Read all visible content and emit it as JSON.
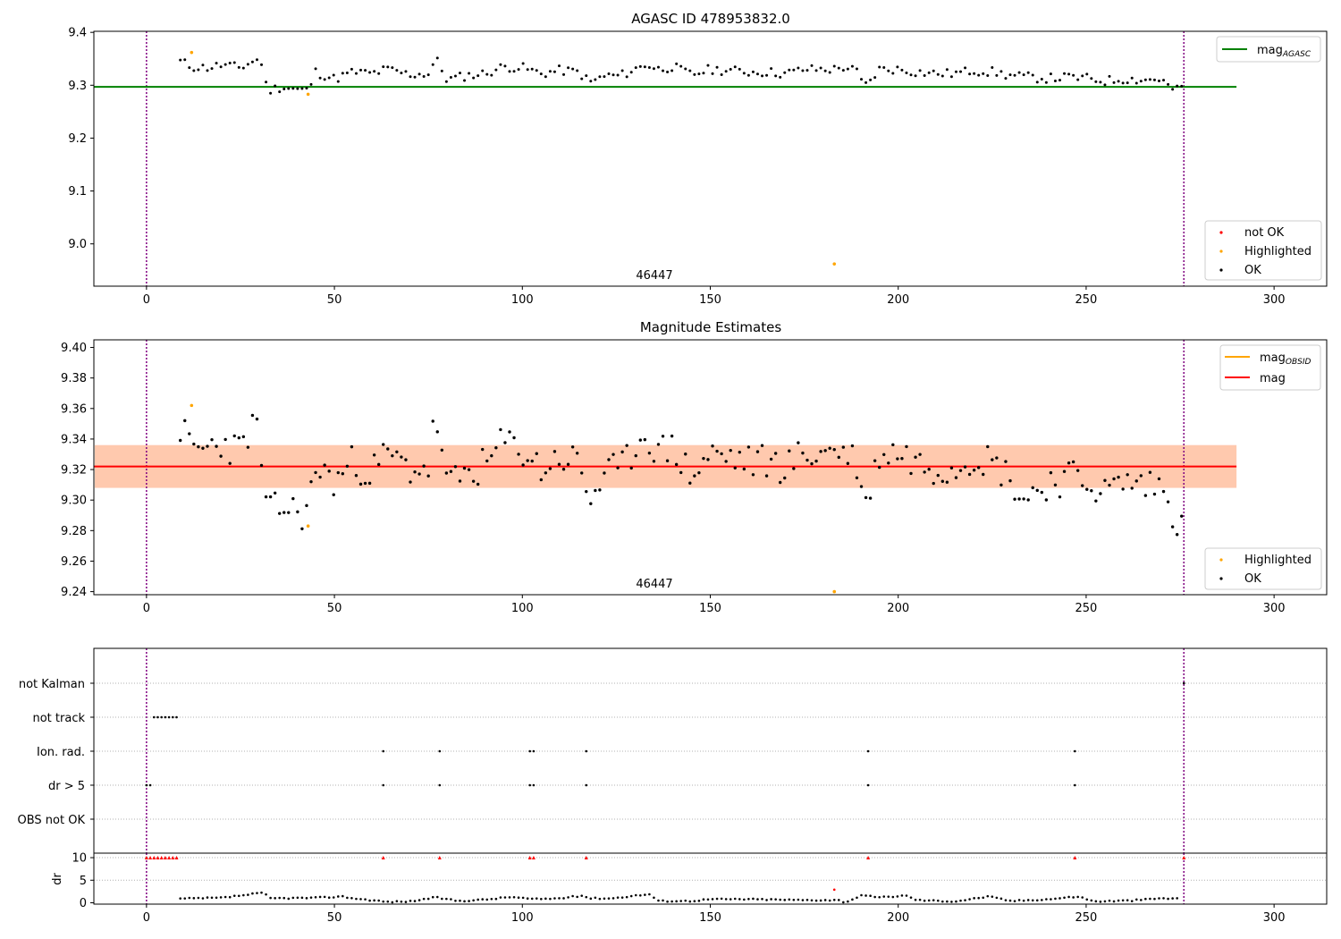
{
  "chart_data": [
    {
      "type": "scatter",
      "title": "AGASC ID 478953832.0",
      "xlabel": "",
      "ylabel": "",
      "xlim": [
        -14,
        314
      ],
      "ylim": [
        8.92,
        9.402
      ],
      "xticks": [
        0,
        50,
        100,
        150,
        200,
        250,
        300
      ],
      "yticks": [
        9.0,
        9.1,
        9.2,
        9.3,
        9.4
      ],
      "ytick_labels": [
        "9.0",
        "9.1",
        "9.2",
        "9.3",
        "9.4"
      ],
      "annotation": "46447",
      "vlines": [
        0,
        276
      ],
      "hline": {
        "name_main": "mag",
        "name_sub": "AGASC",
        "value": 9.297,
        "x": [
          -14,
          290
        ],
        "color": "#008000"
      },
      "legend_top": [
        {
          "main": "mag",
          "sub": "AGASC",
          "color": "#008000"
        }
      ],
      "legend_bottom": [
        {
          "label": "not OK",
          "color": "#ff0000"
        },
        {
          "label": "Highlighted",
          "color": "#ffa500"
        },
        {
          "label": "OK",
          "color": "#000000"
        }
      ],
      "highlighted": [
        [
          12,
          9.362
        ],
        [
          43,
          9.283
        ],
        [
          183,
          8.962
        ]
      ],
      "anchors_x": [
        9,
        12,
        16,
        20,
        25,
        29,
        31,
        32,
        36,
        40,
        43,
        45,
        50,
        55,
        60,
        64,
        70,
        75,
        77,
        80,
        85,
        90,
        95,
        100,
        105,
        110,
        115,
        118,
        122,
        126,
        130,
        133,
        136,
        140,
        145,
        150,
        155,
        160,
        165,
        170,
        175,
        180,
        183,
        186,
        189,
        191,
        195,
        200,
        205,
        210,
        215,
        220,
        225,
        230,
        235,
        240,
        245,
        250,
        255,
        260,
        265,
        270,
        272,
        274,
        276
      ],
      "anchors_y": [
        9.345,
        9.335,
        9.333,
        9.338,
        9.333,
        9.348,
        9.342,
        9.29,
        9.297,
        9.292,
        9.29,
        9.325,
        9.312,
        9.325,
        9.322,
        9.33,
        9.32,
        9.322,
        9.35,
        9.31,
        9.318,
        9.322,
        9.335,
        9.333,
        9.322,
        9.328,
        9.325,
        9.305,
        9.318,
        9.318,
        9.33,
        9.34,
        9.33,
        9.335,
        9.32,
        9.33,
        9.328,
        9.325,
        9.325,
        9.322,
        9.33,
        9.33,
        9.33,
        9.335,
        9.325,
        9.296,
        9.33,
        9.33,
        9.325,
        9.322,
        9.322,
        9.328,
        9.325,
        9.318,
        9.315,
        9.313,
        9.315,
        9.313,
        9.308,
        9.312,
        9.31,
        9.312,
        9.296,
        9.29,
        9.298
      ],
      "step": 1.2,
      "noise": 0.009
    },
    {
      "type": "scatter",
      "title": "Magnitude Estimates",
      "xlabel": "",
      "ylabel": "",
      "xlim": [
        -14,
        314
      ],
      "ylim": [
        9.238,
        9.405
      ],
      "xticks": [
        0,
        50,
        100,
        150,
        200,
        250,
        300
      ],
      "yticks": [
        9.24,
        9.26,
        9.28,
        9.3,
        9.32,
        9.34,
        9.36,
        9.38,
        9.4
      ],
      "ytick_labels": [
        "9.24",
        "9.26",
        "9.28",
        "9.30",
        "9.32",
        "9.34",
        "9.36",
        "9.38",
        "9.40"
      ],
      "annotation": "46447",
      "vlines": [
        0,
        276
      ],
      "mag_line": {
        "value": 9.322,
        "x": [
          -14,
          290
        ],
        "color": "#ff0000"
      },
      "band_obsid": {
        "y0": 9.308,
        "y1": 9.336,
        "x": [
          -14,
          290
        ],
        "color": "#ffc5a5"
      },
      "band_mag": {
        "y0": 9.308,
        "y1": 9.336,
        "x": [
          -14,
          290
        ],
        "color": "#ffdde3"
      },
      "legend_top": [
        {
          "main": "mag",
          "sub": "OBSID",
          "color": "#ffa500"
        },
        {
          "main": "mag",
          "sub": "",
          "color": "#ff0000"
        }
      ],
      "legend_bottom": [
        {
          "label": "Highlighted",
          "color": "#ffa500"
        },
        {
          "label": "OK",
          "color": "#000000"
        }
      ],
      "highlighted": [
        [
          12,
          9.362
        ],
        [
          43,
          9.283
        ],
        [
          183,
          9.24
        ]
      ],
      "anchors_x": [
        9,
        12,
        16,
        20,
        25,
        28,
        30,
        32,
        36,
        40,
        43,
        45,
        50,
        55,
        60,
        64,
        70,
        75,
        77,
        80,
        85,
        90,
        95,
        100,
        105,
        110,
        115,
        118,
        122,
        126,
        130,
        133,
        136,
        140,
        145,
        150,
        155,
        160,
        165,
        170,
        175,
        180,
        183,
        186,
        189,
        191,
        195,
        200,
        205,
        210,
        215,
        220,
        225,
        230,
        233,
        240,
        245,
        250,
        255,
        260,
        265,
        270,
        272,
        274,
        276
      ],
      "anchors_y": [
        9.348,
        9.332,
        9.334,
        9.338,
        9.332,
        9.35,
        9.342,
        9.29,
        9.296,
        9.292,
        9.292,
        9.322,
        9.312,
        9.325,
        9.318,
        9.33,
        9.32,
        9.322,
        9.356,
        9.308,
        9.318,
        9.322,
        9.338,
        9.333,
        9.32,
        9.328,
        9.325,
        9.3,
        9.318,
        9.318,
        9.335,
        9.345,
        9.33,
        9.335,
        9.315,
        9.33,
        9.328,
        9.325,
        9.325,
        9.322,
        9.33,
        9.33,
        9.335,
        9.33,
        9.325,
        9.294,
        9.33,
        9.332,
        9.325,
        9.322,
        9.322,
        9.33,
        9.325,
        9.315,
        9.3,
        9.312,
        9.315,
        9.313,
        9.305,
        9.312,
        9.31,
        9.31,
        9.294,
        9.288,
        9.296
      ],
      "step": 1.2,
      "noise": 0.012
    },
    {
      "type": "scatter",
      "title": "",
      "xlabel": "",
      "ylabel": "",
      "xlim": [
        -14,
        314
      ],
      "xticks": [
        0,
        50,
        100,
        150,
        200,
        250,
        300
      ],
      "vlines": [
        0,
        276
      ],
      "categories": [
        "not Kalman",
        "not track",
        "Ion. rad.",
        "dr > 5",
        "OBS not OK"
      ],
      "flag_points": {
        "not Kalman": [
          276
        ],
        "not track": [
          2,
          3,
          4,
          5,
          6,
          7,
          8
        ],
        "Ion. rad.": [
          63,
          78,
          102,
          103,
          117,
          192,
          247
        ],
        "dr > 5": [
          0,
          1,
          63,
          78,
          102,
          103,
          117,
          192,
          247
        ],
        "OBS not OK": []
      }
    },
    {
      "type": "scatter",
      "title": "",
      "xlabel": "",
      "ylabel": "dr",
      "xlim": [
        -14,
        314
      ],
      "ylim": [
        -0.3,
        11
      ],
      "xticks": [
        0,
        50,
        100,
        150,
        200,
        250,
        300
      ],
      "yticks": [
        0,
        5,
        10
      ],
      "ytick_labels": [
        "0",
        "5",
        "10"
      ],
      "vlines": [
        0,
        276
      ],
      "capped_value": 10,
      "capped_x": [
        0,
        1,
        2,
        3,
        4,
        5,
        6,
        7,
        8,
        63,
        78,
        102,
        103,
        117,
        192,
        247,
        276
      ],
      "outlier": [
        183,
        2.9
      ],
      "anchors_x": [
        9,
        20,
        31,
        33,
        45,
        52,
        55,
        62,
        64,
        70,
        77,
        83,
        90,
        97,
        103,
        110,
        116,
        118,
        124,
        130,
        134,
        136,
        145,
        150,
        160,
        175,
        184,
        186,
        190,
        195,
        202,
        205,
        215,
        224,
        230,
        240,
        248,
        252,
        262,
        270,
        275
      ],
      "anchors_y": [
        0.9,
        1.1,
        2.2,
        1.0,
        1.1,
        1.4,
        1.0,
        0.4,
        0.2,
        0.3,
        1.2,
        0.4,
        0.7,
        1.3,
        0.8,
        1.0,
        1.6,
        1.0,
        1.0,
        1.6,
        1.9,
        0.4,
        0.4,
        0.8,
        0.8,
        0.6,
        0.6,
        0.1,
        1.6,
        1.2,
        1.6,
        0.6,
        0.3,
        1.4,
        0.4,
        0.8,
        1.4,
        0.3,
        0.5,
        1.0,
        0.9
      ],
      "step": 1.2,
      "noise": 0.15
    }
  ]
}
